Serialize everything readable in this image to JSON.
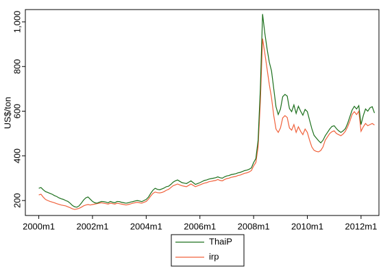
{
  "chart_data": {
    "type": "line",
    "y_label": "US$/ton",
    "x": [
      480,
      481,
      482,
      483,
      484,
      485,
      486,
      487,
      488,
      489,
      490,
      491,
      492,
      493,
      494,
      495,
      496,
      497,
      498,
      499,
      500,
      501,
      502,
      503,
      504,
      505,
      506,
      507,
      508,
      509,
      510,
      511,
      512,
      513,
      514,
      515,
      516,
      517,
      518,
      519,
      520,
      521,
      522,
      523,
      524,
      525,
      526,
      527,
      528,
      529,
      530,
      531,
      532,
      533,
      534,
      535,
      536,
      537,
      538,
      539,
      540,
      541,
      542,
      543,
      544,
      545,
      546,
      547,
      548,
      549,
      550,
      551,
      552,
      553,
      554,
      555,
      556,
      557,
      558,
      559,
      560,
      561,
      562,
      563,
      564,
      565,
      566,
      567,
      568,
      569,
      570,
      571,
      572,
      573,
      574,
      575,
      576,
      577,
      578,
      579,
      580,
      581,
      582,
      583,
      584,
      585,
      586,
      587,
      588,
      589,
      590,
      591,
      592,
      593,
      594,
      595,
      596,
      597,
      598,
      599,
      600,
      601,
      602,
      603,
      604,
      605,
      606,
      607,
      608,
      609,
      610,
      611,
      612,
      613,
      614,
      615,
      616,
      617,
      618,
      619,
      620,
      621,
      622,
      623,
      624,
      625,
      626,
      627,
      628,
      629,
      630
    ],
    "series": [
      {
        "name": "ThaiP",
        "color": "#1a6e1a",
        "values": [
          255,
          258,
          248,
          240,
          236,
          232,
          228,
          222,
          218,
          212,
          208,
          205,
          200,
          196,
          188,
          178,
          172,
          170,
          176,
          188,
          202,
          212,
          216,
          206,
          196,
          190,
          188,
          192,
          196,
          195,
          193,
          190,
          196,
          192,
          190,
          196,
          195,
          192,
          190,
          188,
          190,
          193,
          195,
          198,
          200,
          198,
          195,
          200,
          205,
          215,
          232,
          246,
          255,
          250,
          248,
          252,
          256,
          262,
          264,
          272,
          282,
          288,
          292,
          286,
          280,
          278,
          276,
          282,
          288,
          280,
          272,
          276,
          280,
          285,
          290,
          292,
          296,
          298,
          300,
          302,
          306,
          302,
          300,
          306,
          310,
          312,
          316,
          318,
          320,
          324,
          326,
          330,
          334,
          336,
          340,
          346,
          370,
          388,
          470,
          700,
          1035,
          950,
          880,
          820,
          780,
          700,
          620,
          585,
          610,
          665,
          675,
          668,
          612,
          598,
          628,
          590,
          622,
          600,
          582,
          608,
          598,
          560,
          522,
          492,
          480,
          468,
          458,
          470,
          490,
          505,
          520,
          532,
          535,
          522,
          512,
          505,
          512,
          522,
          545,
          575,
          605,
          622,
          610,
          625,
          540,
          580,
          610,
          600,
          615,
          620,
          592
        ]
      },
      {
        "name": "irp",
        "color": "#f0603a",
        "values": [
          225,
          228,
          215,
          205,
          200,
          196,
          193,
          190,
          186,
          183,
          180,
          178,
          176,
          172,
          168,
          163,
          160,
          162,
          165,
          170,
          176,
          180,
          182,
          180,
          182,
          184,
          186,
          188,
          190,
          188,
          186,
          184,
          188,
          186,
          184,
          188,
          186,
          184,
          182,
          180,
          182,
          185,
          188,
          190,
          192,
          190,
          188,
          192,
          196,
          206,
          220,
          232,
          238,
          235,
          234,
          236,
          240,
          246,
          250,
          258,
          266,
          270,
          274,
          270,
          266,
          264,
          262,
          268,
          274,
          268,
          262,
          266,
          270,
          274,
          278,
          280,
          284,
          286,
          288,
          290,
          294,
          290,
          288,
          294,
          298,
          300,
          304,
          306,
          308,
          312,
          314,
          318,
          322,
          324,
          328,
          334,
          355,
          370,
          440,
          640,
          925,
          860,
          790,
          720,
          660,
          580,
          520,
          505,
          525,
          570,
          580,
          572,
          525,
          515,
          540,
          505,
          530,
          510,
          495,
          520,
          505,
          470,
          440,
          425,
          420,
          418,
          424,
          440,
          470,
          485,
          500,
          508,
          512,
          500,
          495,
          490,
          498,
          510,
          530,
          555,
          585,
          598,
          585,
          600,
          510,
          530,
          545,
          535,
          540,
          545,
          538
        ]
      }
    ],
    "xlim": [
      474,
      632
    ],
    "xticks": [
      {
        "value": 480,
        "label": "2000m1"
      },
      {
        "value": 504,
        "label": "2002m1"
      },
      {
        "value": 528,
        "label": "2004m1"
      },
      {
        "value": 552,
        "label": "2006m1"
      },
      {
        "value": 576,
        "label": "2008m1"
      },
      {
        "value": 600,
        "label": "2010m1"
      },
      {
        "value": 624,
        "label": "2012m1"
      }
    ],
    "ylim": [
      133,
      1055
    ],
    "yticks": [
      200,
      400,
      600,
      800,
      {
        "value": 1000,
        "label": "1,000"
      }
    ],
    "legend": "bottom"
  }
}
